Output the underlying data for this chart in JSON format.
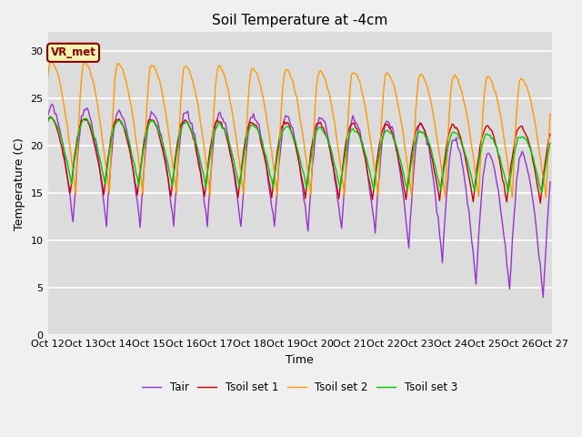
{
  "title": "Soil Temperature at -4cm",
  "xlabel": "Time",
  "ylabel": "Temperature (C)",
  "ylim": [
    0,
    32
  ],
  "yticks": [
    0,
    5,
    10,
    15,
    20,
    25,
    30
  ],
  "xlim": [
    0,
    360
  ],
  "xtick_positions": [
    0,
    24,
    48,
    72,
    96,
    120,
    144,
    168,
    192,
    216,
    240,
    264,
    288,
    312,
    336,
    360
  ],
  "xtick_labels": [
    "Oct 12",
    "Oct 13",
    "Oct 14",
    "Oct 15",
    "Oct 16",
    "Oct 17",
    "Oct 18",
    "Oct 19",
    "Oct 20",
    "Oct 21",
    "Oct 22",
    "Oct 23",
    "Oct 24",
    "Oct 25",
    "Oct 26",
    "Oct 27"
  ],
  "legend_labels": [
    "Tair",
    "Tsoil set 1",
    "Tsoil set 2",
    "Tsoil set 3"
  ],
  "colors": {
    "Tair": "#9933cc",
    "Tsoil_set1": "#cc0000",
    "Tsoil_set2": "#ff9900",
    "Tsoil_set3": "#00cc00"
  },
  "annotation_text": "VR_met",
  "linewidth": 1.0,
  "fig_bg": "#f0f0f0",
  "axes_bg": "#dcdcdc",
  "grid_color": "#ffffff"
}
